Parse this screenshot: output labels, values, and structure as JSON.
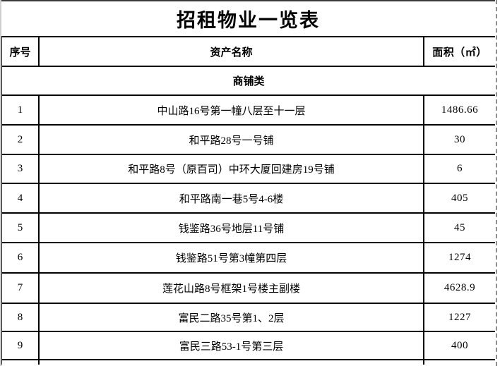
{
  "title": "招租物业一览表",
  "table": {
    "headers": {
      "no": "序号",
      "name": "资产名称",
      "area": "面积（㎡）"
    },
    "section": "商铺类",
    "rows": [
      {
        "no": "1",
        "name": "中山路16号第一幢八层至十一层",
        "area": "1486.66"
      },
      {
        "no": "2",
        "name": "和平路28号一号铺",
        "area": "30"
      },
      {
        "no": "3",
        "name": "和平路8号（原百司）中环大厦回建房19号铺",
        "area": "6"
      },
      {
        "no": "4",
        "name": "和平路南一巷5号4-6楼",
        "area": "405"
      },
      {
        "no": "5",
        "name": "钱鉴路36号地层11号铺",
        "area": "45"
      },
      {
        "no": "6",
        "name": "钱鉴路51号第3幢第四层",
        "area": "1274"
      },
      {
        "no": "7",
        "name": "莲花山路8号框架1号楼主副楼",
        "area": "4628.9"
      },
      {
        "no": "8",
        "name": "富民二路35号第1、2层",
        "area": "1227"
      },
      {
        "no": "9",
        "name": "富民三路53-1号第三层",
        "area": "400"
      }
    ]
  }
}
